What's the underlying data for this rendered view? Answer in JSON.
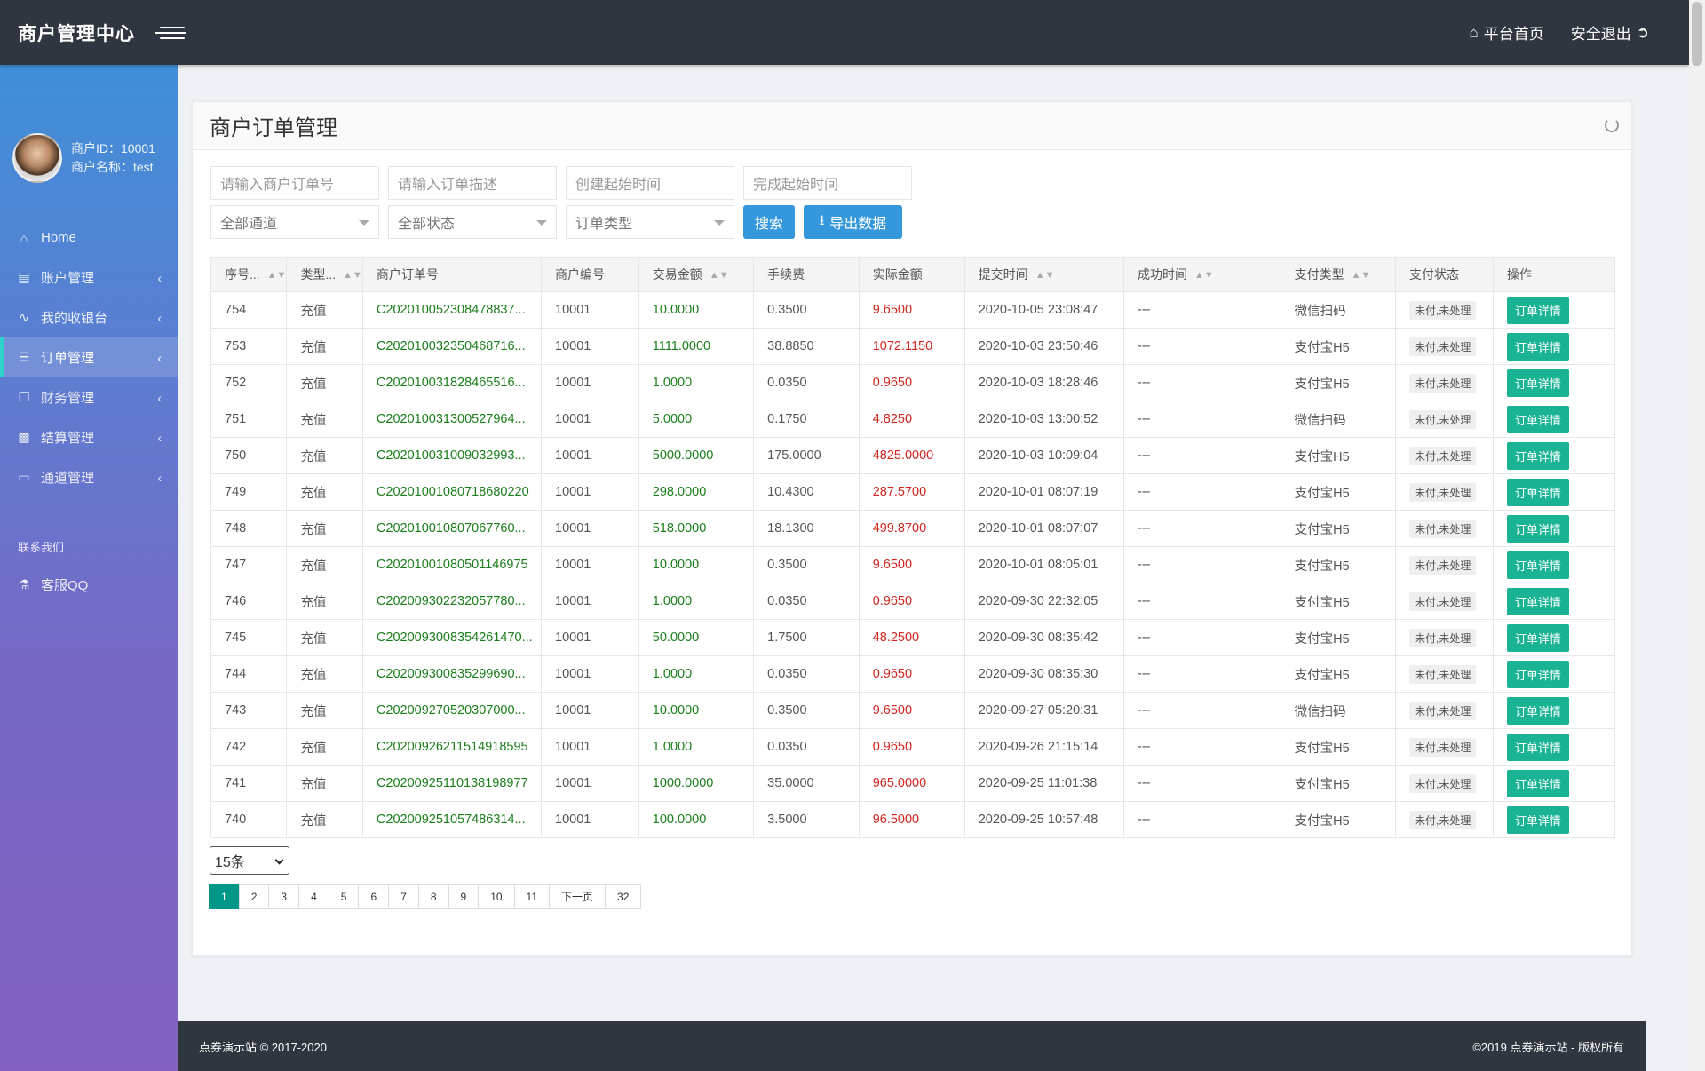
{
  "header": {
    "brand": "商户管理中心",
    "home_link": "平台首页",
    "logout_link": "安全退出"
  },
  "sidebar": {
    "merchant_id": "商户ID：10001",
    "merchant_name": "商户名称：test",
    "items": [
      {
        "label": "Home",
        "icon": "home-icon",
        "chevron": false
      },
      {
        "label": "账户管理",
        "icon": "clipboard-icon",
        "chevron": true
      },
      {
        "label": "我的收银台",
        "icon": "chart-line-icon",
        "chevron": true
      },
      {
        "label": "订单管理",
        "icon": "list-icon",
        "chevron": true,
        "active": true
      },
      {
        "label": "财务管理",
        "icon": "copy-icon",
        "chevron": true
      },
      {
        "label": "结算管理",
        "icon": "money-icon",
        "chevron": true
      },
      {
        "label": "通道管理",
        "icon": "card-icon",
        "chevron": true
      }
    ],
    "contact_title": "联系我们",
    "contact_item": "客服QQ"
  },
  "panel": {
    "title": "商户订单管理"
  },
  "filters": {
    "order_no_placeholder": "请输入商户订单号",
    "desc_placeholder": "请输入订单描述",
    "create_time_placeholder": "创建起始时间",
    "finish_time_placeholder": "完成起始时间",
    "channel_select": "全部通道",
    "status_select": "全部状态",
    "type_select": "订单类型",
    "search_button": "搜索",
    "export_button": "导出数据"
  },
  "table": {
    "headers": [
      "序号...",
      "类型...",
      "商户订单号",
      "商户编号",
      "交易金额",
      "手续费",
      "实际金额",
      "提交时间",
      "成功时间",
      "支付类型",
      "支付状态",
      "操作"
    ],
    "rows": [
      [
        "754",
        "充值",
        "C202010052308478837...",
        "10001",
        "10.0000",
        "0.3500",
        "9.6500",
        "2020-10-05 23:08:47",
        "---",
        "微信扫码",
        "未付,未处理",
        "订单详情"
      ],
      [
        "753",
        "充值",
        "C202010032350468716...",
        "10001",
        "1111.0000",
        "38.8850",
        "1072.1150",
        "2020-10-03 23:50:46",
        "---",
        "支付宝H5",
        "未付,未处理",
        "订单详情"
      ],
      [
        "752",
        "充值",
        "C202010031828465516...",
        "10001",
        "1.0000",
        "0.0350",
        "0.9650",
        "2020-10-03 18:28:46",
        "---",
        "支付宝H5",
        "未付,未处理",
        "订单详情"
      ],
      [
        "751",
        "充值",
        "C202010031300527964...",
        "10001",
        "5.0000",
        "0.1750",
        "4.8250",
        "2020-10-03 13:00:52",
        "---",
        "微信扫码",
        "未付,未处理",
        "订单详情"
      ],
      [
        "750",
        "充值",
        "C202010031009032993...",
        "10001",
        "5000.0000",
        "175.0000",
        "4825.0000",
        "2020-10-03 10:09:04",
        "---",
        "支付宝H5",
        "未付,未处理",
        "订单详情"
      ],
      [
        "749",
        "充值",
        "C20201001080718680220",
        "10001",
        "298.0000",
        "10.4300",
        "287.5700",
        "2020-10-01 08:07:19",
        "---",
        "支付宝H5",
        "未付,未处理",
        "订单详情"
      ],
      [
        "748",
        "充值",
        "C202010010807067760...",
        "10001",
        "518.0000",
        "18.1300",
        "499.8700",
        "2020-10-01 08:07:07",
        "---",
        "支付宝H5",
        "未付,未处理",
        "订单详情"
      ],
      [
        "747",
        "充值",
        "C20201001080501146975",
        "10001",
        "10.0000",
        "0.3500",
        "9.6500",
        "2020-10-01 08:05:01",
        "---",
        "支付宝H5",
        "未付,未处理",
        "订单详情"
      ],
      [
        "746",
        "充值",
        "C202009302232057780...",
        "10001",
        "1.0000",
        "0.0350",
        "0.9650",
        "2020-09-30 22:32:05",
        "---",
        "支付宝H5",
        "未付,未处理",
        "订单详情"
      ],
      [
        "745",
        "充值",
        "C2020093008354261470...",
        "10001",
        "50.0000",
        "1.7500",
        "48.2500",
        "2020-09-30 08:35:42",
        "---",
        "支付宝H5",
        "未付,未处理",
        "订单详情"
      ],
      [
        "744",
        "充值",
        "C202009300835299690...",
        "10001",
        "1.0000",
        "0.0350",
        "0.9650",
        "2020-09-30 08:35:30",
        "---",
        "支付宝H5",
        "未付,未处理",
        "订单详情"
      ],
      [
        "743",
        "充值",
        "C202009270520307000...",
        "10001",
        "10.0000",
        "0.3500",
        "9.6500",
        "2020-09-27 05:20:31",
        "---",
        "微信扫码",
        "未付,未处理",
        "订单详情"
      ],
      [
        "742",
        "充值",
        "C20200926211514918595",
        "10001",
        "1.0000",
        "0.0350",
        "0.9650",
        "2020-09-26 21:15:14",
        "---",
        "支付宝H5",
        "未付,未处理",
        "订单详情"
      ],
      [
        "741",
        "充值",
        "C20200925110138198977",
        "10001",
        "1000.0000",
        "35.0000",
        "965.0000",
        "2020-09-25 11:01:38",
        "---",
        "支付宝H5",
        "未付,未处理",
        "订单详情"
      ],
      [
        "740",
        "充值",
        "C202009251057486314...",
        "10001",
        "100.0000",
        "3.5000",
        "96.5000",
        "2020-09-25 10:57:48",
        "---",
        "支付宝H5",
        "未付,未处理",
        "订单详情"
      ]
    ]
  },
  "pagination": {
    "page_size": "15条",
    "pages": [
      "1",
      "2",
      "3",
      "4",
      "5",
      "6",
      "7",
      "8",
      "9",
      "10",
      "11",
      "下一页",
      "32"
    ],
    "current": "1"
  },
  "footer": {
    "left": "点券演示站 © 2017-2020",
    "right": "©2019 点券演示站 - 版权所有"
  }
}
